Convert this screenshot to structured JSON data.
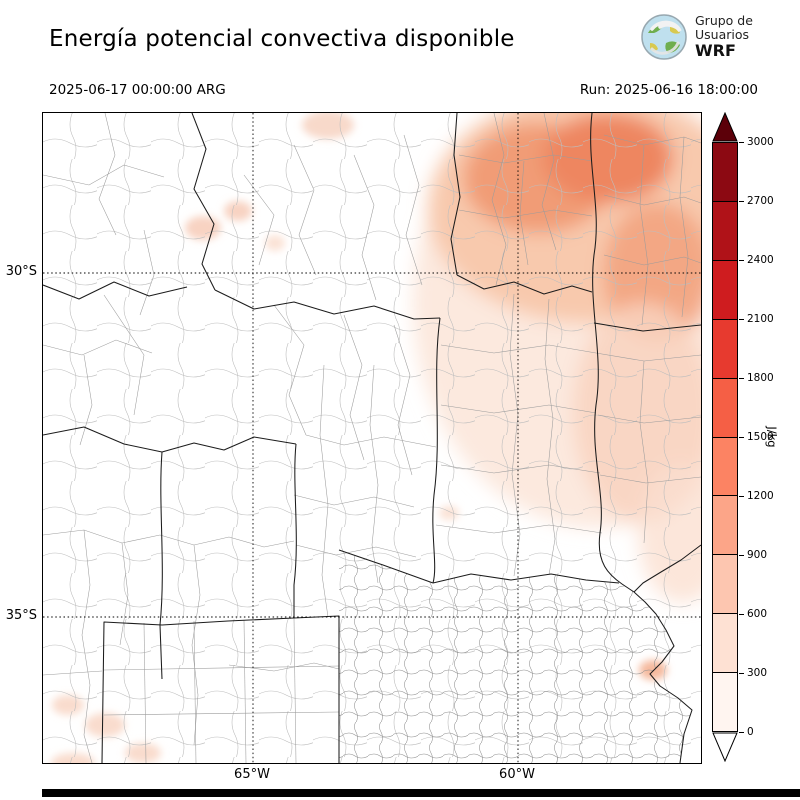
{
  "header": {
    "title": "Energía potencial convectiva disponible",
    "logo": {
      "line1": "Grupo de",
      "line2": "Usuarios",
      "line3": "WRF"
    }
  },
  "subheader": {
    "valid_time": "2025-06-17 00:00:00 ARG",
    "run_time": "Run: 2025-06-16 18:00:00"
  },
  "axes": {
    "lat_labels": [
      "30°S",
      "35°S"
    ],
    "lon_labels": [
      "65°W",
      "60°W"
    ]
  },
  "colorbar": {
    "unit": "J/kg",
    "tick_labels": [
      "3000",
      "2700",
      "2400",
      "2100",
      "1800",
      "1500",
      "1200",
      "900",
      "600",
      "300",
      "0"
    ],
    "segment_colors_top_to_bottom": [
      "#8c0912",
      "#b01218",
      "#cf1c1f",
      "#e73a2f",
      "#f55f45",
      "#fc8363",
      "#fca588",
      "#fdc6b0",
      "#fee1d3",
      "#fff5f0"
    ],
    "over_color": "#5c0009",
    "under_color": "#ffffff"
  },
  "chart_data": {
    "type": "heatmap",
    "title": "Energía potencial convectiva disponible",
    "variable": "CAPE (convective available potential energy)",
    "units": "J/kg",
    "valid_time": "2025-06-17 00:00:00 ARG",
    "model_run": "Run: 2025-06-16 18:00:00",
    "levels": [
      0,
      300,
      600,
      900,
      1200,
      1500,
      1800,
      2100,
      2400,
      2700,
      3000
    ],
    "colormap": "Reds",
    "legend_position": "right vertical colorbar with over/under extension arrows",
    "x_axis": {
      "ticks": [
        "65°W",
        "60°W"
      ],
      "gridlines": "dotted black"
    },
    "y_axis": {
      "ticks": [
        "30°S",
        "35°S"
      ],
      "gridlines": "dotted black"
    },
    "map_region": "central-northern Argentina with province and department boundaries",
    "field_summary": [
      {
        "region": "far northeast of map (Chaco / Corrientes / north Santa Fe, top-right)",
        "value_range_jkg": [
          300,
          1200
        ]
      },
      {
        "region": "east edge tongue southward (Corrientes / Entre Ríos, to ~33S)",
        "value_range_jkg": [
          0,
          600
        ]
      },
      {
        "region": "small scattered patches northwest (near 28-29S 66-67W) and southwest corner",
        "value_range_jkg": [
          0,
          300
        ]
      },
      {
        "region": "center, west and south of the map (Córdoba, Cuyo, La Pampa, Buenos Aires)",
        "value_range_jkg": [
          0,
          0
        ]
      }
    ]
  }
}
